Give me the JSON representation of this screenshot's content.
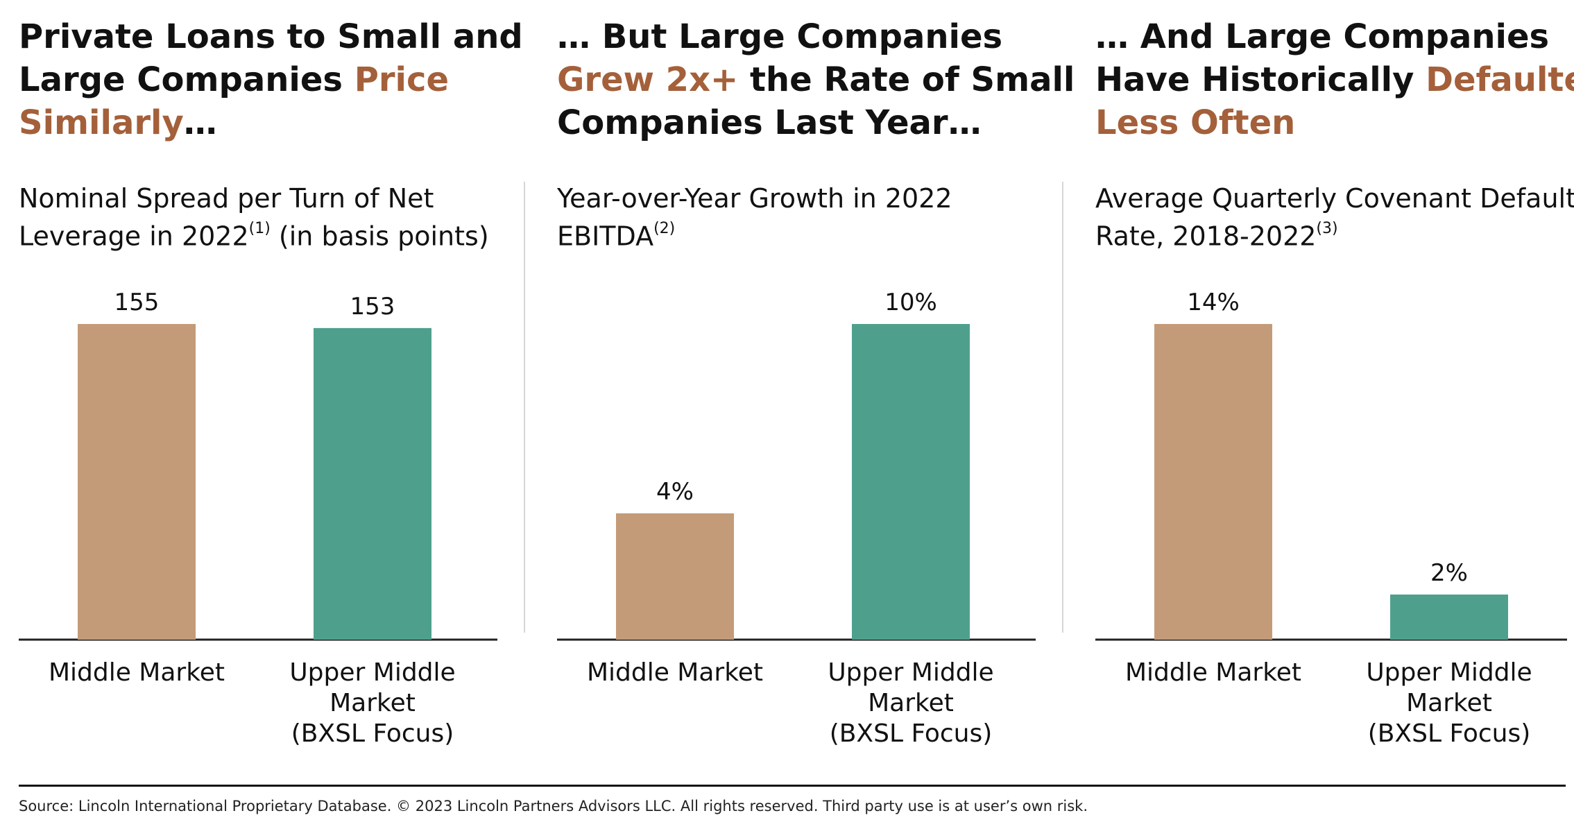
{
  "panels": [
    {
      "headline": {
        "line1": "Private Loans to Small and",
        "line2_plain": "Large Companies ",
        "line2_accent": "Price",
        "line3_accent": "Similarly",
        "line3_plain": "…"
      },
      "subtitle": {
        "line1": "Nominal Spread per Turn of Net",
        "line2_pre": "Leverage in 2022",
        "footnote_ref": "(1)",
        "line2_post": " (in basis points)"
      }
    },
    {
      "headline": {
        "line1": "… But Large Companies",
        "line2_accent": "Grew 2x+",
        "line2_plain": " the Rate of Small",
        "line3_plain": "Companies Last Year…"
      },
      "subtitle": {
        "line1": "Year-over-Year Growth in 2022",
        "line2_pre": "EBITDA",
        "footnote_ref": "(2)"
      }
    },
    {
      "headline": {
        "line1": "… And Large Companies",
        "line2_plain": "Have Historically ",
        "line2_accent": "Defaulted",
        "line3_accent": "Less Often"
      },
      "subtitle": {
        "line1": "Average Quarterly Covenant Default",
        "line2_pre": "Rate, 2018-2022",
        "footnote_ref": "(3)"
      }
    }
  ],
  "chart_data": [
    {
      "type": "bar",
      "title": "Nominal Spread per Turn of Net Leverage in 2022 (in basis points)",
      "categories": [
        "Middle Market",
        "Upper Middle Market (BXSL Focus)"
      ],
      "category_lines": [
        [
          "Middle Market"
        ],
        [
          "Upper Middle",
          "Market",
          "(BXSL Focus)"
        ]
      ],
      "values": [
        155,
        153
      ],
      "value_labels": [
        "155",
        "153"
      ],
      "colors": [
        "#c49b78",
        "#4ea08d"
      ],
      "ylim": [
        0,
        155
      ],
      "unit": "bps"
    },
    {
      "type": "bar",
      "title": "Year-over-Year Growth in 2022 EBITDA",
      "categories": [
        "Middle Market",
        "Upper Middle Market (BXSL Focus)"
      ],
      "category_lines": [
        [
          "Middle Market"
        ],
        [
          "Upper Middle",
          "Market",
          "(BXSL Focus)"
        ]
      ],
      "values": [
        4,
        10
      ],
      "value_labels": [
        "4%",
        "10%"
      ],
      "colors": [
        "#c49b78",
        "#4ea08d"
      ],
      "ylim": [
        0,
        10
      ],
      "unit": "%"
    },
    {
      "type": "bar",
      "title": "Average Quarterly Covenant Default Rate, 2018-2022",
      "categories": [
        "Middle Market",
        "Upper Middle Market (BXSL Focus)"
      ],
      "category_lines": [
        [
          "Middle Market"
        ],
        [
          "Upper Middle",
          "Market",
          "(BXSL Focus)"
        ]
      ],
      "values": [
        14,
        2
      ],
      "value_labels": [
        "14%",
        "2%"
      ],
      "colors": [
        "#c49b78",
        "#4ea08d"
      ],
      "ylim": [
        0,
        14
      ],
      "unit": "%"
    }
  ],
  "footer": {
    "source": "Source: Lincoln International Proprietary Database. © 2023 Lincoln Partners Advisors LLC. All rights reserved. Third party use is at user’s own risk."
  }
}
